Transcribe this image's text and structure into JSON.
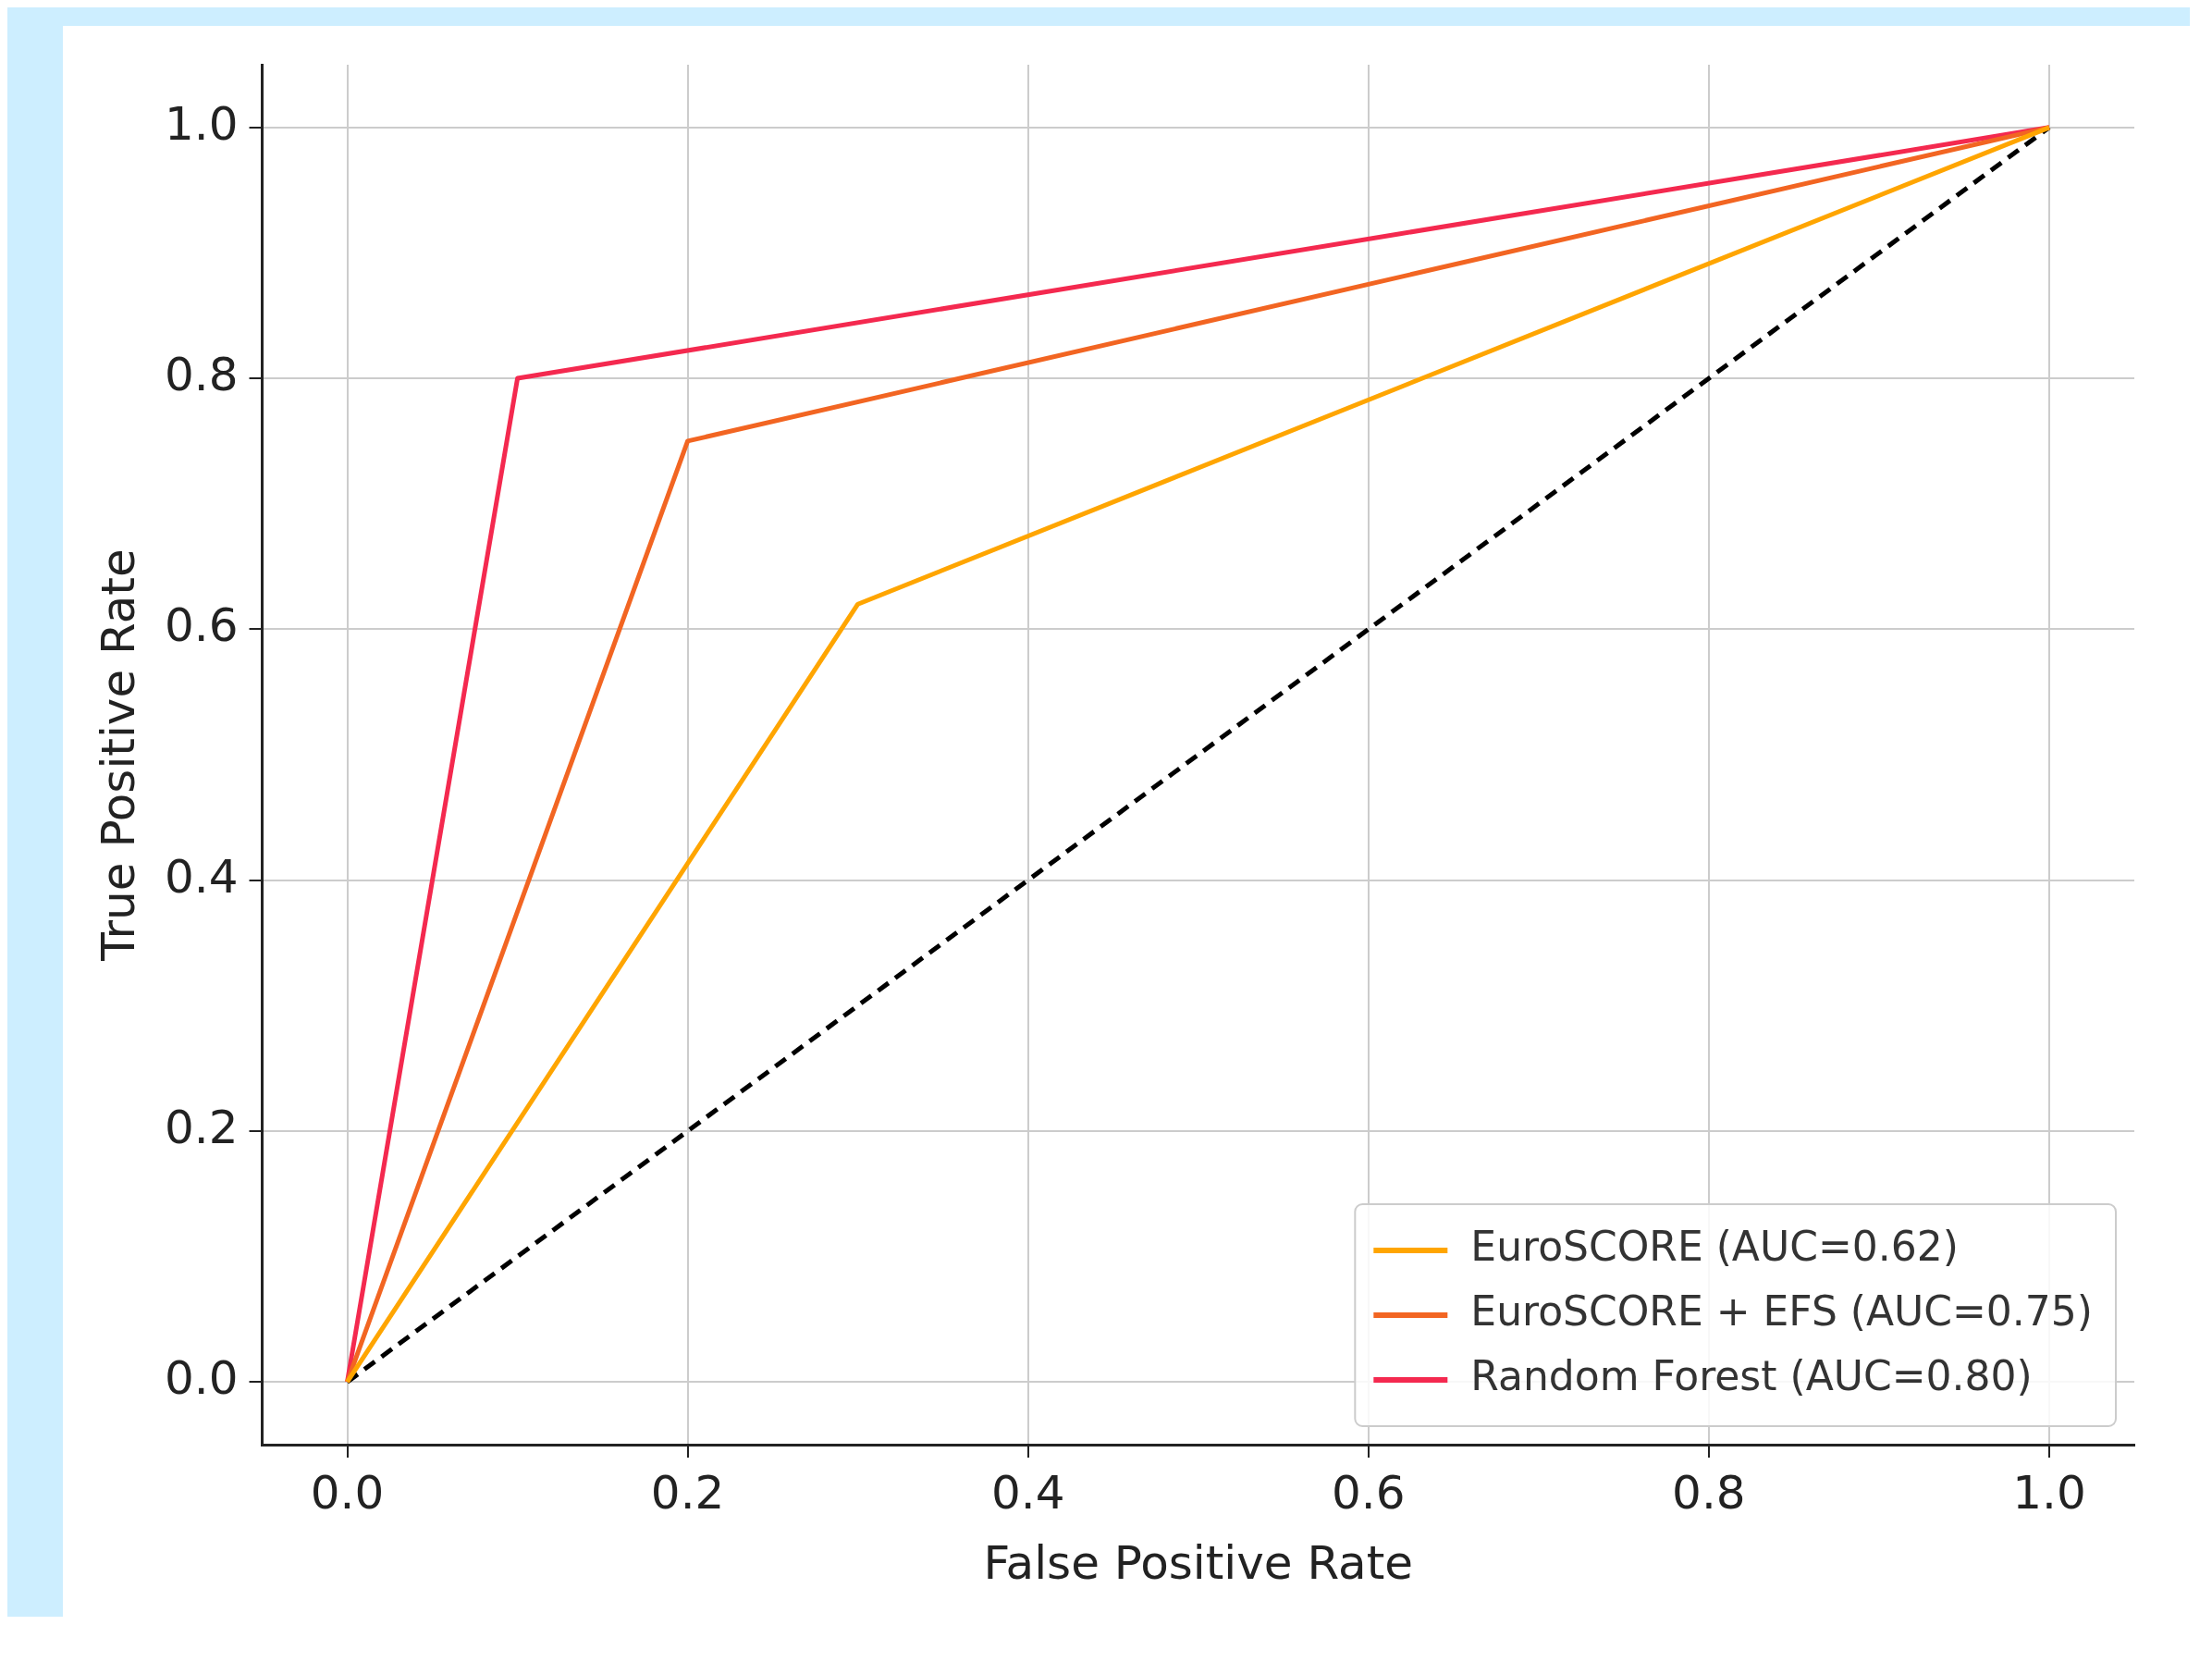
{
  "chart_data": {
    "type": "line",
    "xlabel": "False Positive Rate",
    "ylabel": "True Positive Rate",
    "xlim": [
      -0.05,
      1.05
    ],
    "ylim": [
      -0.05,
      1.05
    ],
    "xticks": [
      {
        "value": 0,
        "label": "0.0"
      },
      {
        "value": 0.2,
        "label": "0.2"
      },
      {
        "value": 0.4,
        "label": "0.4"
      },
      {
        "value": 0.6,
        "label": "0.6"
      },
      {
        "value": 0.8,
        "label": "0.8"
      },
      {
        "value": 1,
        "label": "1.0"
      }
    ],
    "yticks": [
      {
        "value": 0,
        "label": "0.0"
      },
      {
        "value": 0.2,
        "label": "0.2"
      },
      {
        "value": 0.4,
        "label": "0.4"
      },
      {
        "value": 0.6,
        "label": "0.6"
      },
      {
        "value": 0.8,
        "label": "0.8"
      },
      {
        "value": 1,
        "label": "1.0"
      }
    ],
    "grid": true,
    "legend": "bottom right",
    "marker": "none",
    "series": [
      {
        "name": "EuroSCORE (AUC=0.62)",
        "color": "#ffa500",
        "x": [
          0,
          0.3,
          1
        ],
        "values": [
          0,
          0.62,
          1
        ]
      },
      {
        "name": "EuroSCORE + EFS (AUC=0.75)",
        "color": "#f26522",
        "x": [
          0,
          0.2,
          1
        ],
        "values": [
          0,
          0.75,
          1
        ]
      },
      {
        "name": "Random Forest (AUC=0.80)",
        "color": "#f4294f",
        "x": [
          0,
          0.1,
          1
        ],
        "values": [
          0,
          0.8,
          1
        ]
      },
      {
        "color": "#000000",
        "x": [
          0,
          1
        ],
        "values": [
          0,
          1
        ],
        "line_style": "dashed"
      }
    ]
  }
}
